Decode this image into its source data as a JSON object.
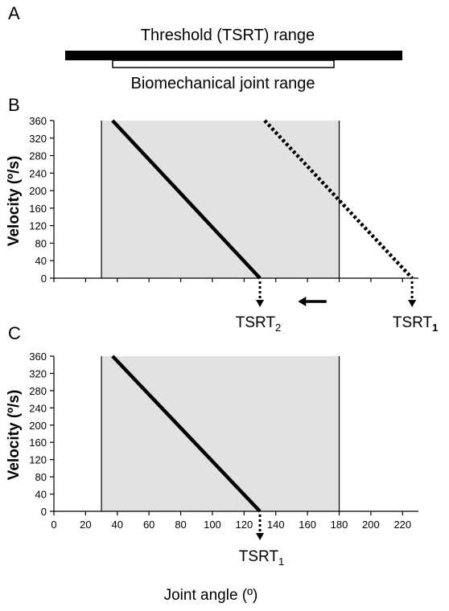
{
  "panel_a": {
    "letter": "A",
    "threshold_label": "Threshold (TSRT) range",
    "joint_label": "Biomechanical joint range"
  },
  "panel_b": {
    "letter": "B",
    "tsrt2_base": "TSRT",
    "tsrt2_sub": "2",
    "tsrt1_base": "TSRT",
    "tsrt1_sub": "1"
  },
  "panel_c": {
    "letter": "C",
    "tsrt1_base": "TSRT",
    "tsrt1_sub": "1"
  },
  "chart_data": [
    {
      "type": "line",
      "panel": "B",
      "ylabel": "Velocity (º/s)",
      "xlim": [
        0,
        230
      ],
      "ylim": [
        0,
        360
      ],
      "yticks": [
        0,
        40,
        80,
        120,
        160,
        200,
        240,
        280,
        320,
        360
      ],
      "xticks": [
        0,
        20,
        40,
        60,
        80,
        100,
        120,
        140,
        160,
        180,
        200,
        220
      ],
      "xtick_labels_shown": false,
      "shaded_range": [
        30,
        180
      ],
      "series": [
        {
          "style": "solid",
          "x": [
            37,
            130
          ],
          "y": [
            360,
            0
          ]
        },
        {
          "style": "dotted",
          "x": [
            133,
            226
          ],
          "y": [
            360,
            0
          ]
        }
      ],
      "shift_arrow": {
        "from": 172,
        "to": 154
      }
    },
    {
      "type": "line",
      "panel": "C",
      "ylabel": "Velocity (º/s)",
      "xlabel": "Joint angle (º)",
      "xlim": [
        0,
        230
      ],
      "ylim": [
        0,
        360
      ],
      "yticks": [
        0,
        40,
        80,
        120,
        160,
        200,
        240,
        280,
        320,
        360
      ],
      "xticks": [
        0,
        20,
        40,
        60,
        80,
        100,
        120,
        140,
        160,
        180,
        200,
        220
      ],
      "xtick_labels": [
        "0",
        "20",
        "40",
        "60",
        "80",
        "100",
        "120",
        "140",
        "160",
        "180",
        "200",
        "220"
      ],
      "shaded_range": [
        30,
        180
      ],
      "series": [
        {
          "style": "solid",
          "x": [
            37,
            130
          ],
          "y": [
            360,
            0
          ]
        }
      ]
    }
  ]
}
